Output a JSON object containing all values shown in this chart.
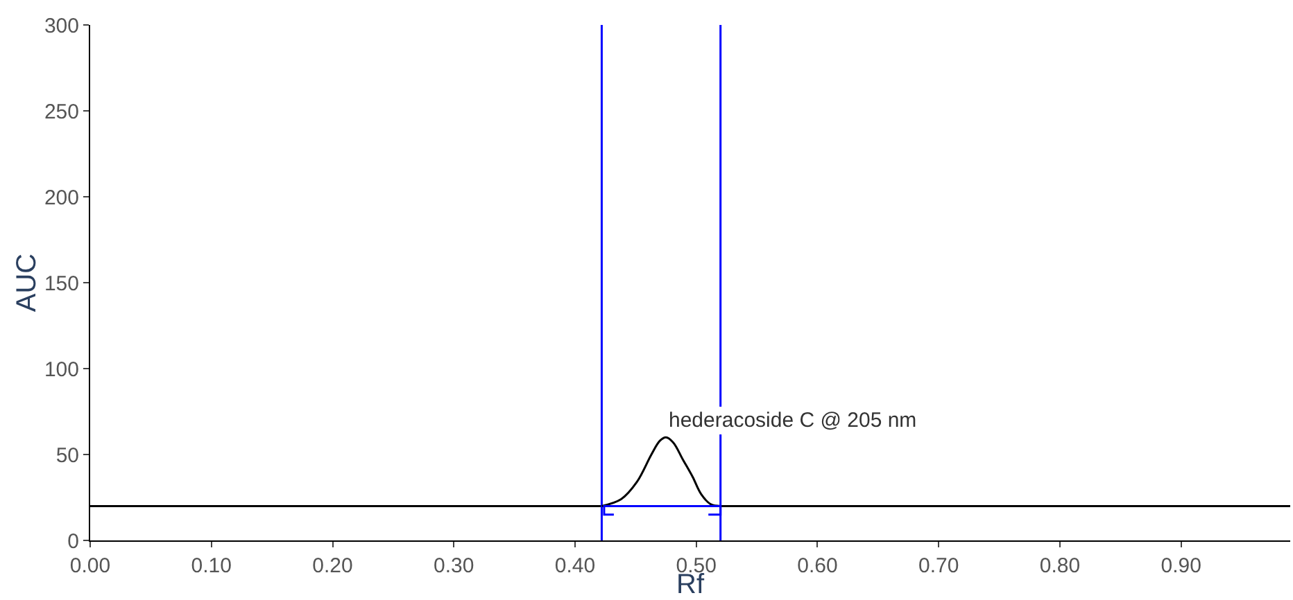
{
  "chart_data": {
    "type": "line",
    "xlabel": "Rf",
    "ylabel": "AUC",
    "xlim": [
      0,
      0.99
    ],
    "xticks": [
      {
        "value": 0,
        "label": "0.00"
      },
      {
        "value": 0.1,
        "label": "0.10"
      },
      {
        "value": 0.2,
        "label": "0.20"
      },
      {
        "value": 0.3,
        "label": "0.30"
      },
      {
        "value": 0.4,
        "label": "0.40"
      },
      {
        "value": 0.5,
        "label": "0.50"
      },
      {
        "value": 0.6,
        "label": "0.60"
      },
      {
        "value": 0.7,
        "label": "0.70"
      },
      {
        "value": 0.8,
        "label": "0.80"
      },
      {
        "value": 0.9,
        "label": "0.90"
      }
    ],
    "ylim": [
      0,
      300
    ],
    "yticks": [
      0,
      50,
      100,
      150,
      200,
      250,
      300
    ],
    "series": [
      {
        "color": "#000000",
        "x": [
          0.422,
          0.438,
          0.451,
          0.463,
          0.47,
          0.475,
          0.481,
          0.489,
          0.497,
          0.504,
          0.512,
          0.52
        ],
        "values": [
          20,
          24,
          34,
          50,
          58,
          60,
          57,
          47,
          37,
          27,
          21,
          20
        ]
      },
      {
        "color": "#0000ff",
        "x": [
          0.432,
          0.424,
          0.424,
          0.52,
          0.52,
          0.51
        ],
        "values": [
          15,
          15,
          20,
          20,
          15,
          15
        ]
      }
    ],
    "ref_lines": [
      {
        "axis": "y",
        "value": 20,
        "color": "#000000"
      },
      {
        "axis": "x",
        "value": 0.422,
        "color": "#0000ff"
      },
      {
        "axis": "x",
        "value": 0.52,
        "color": "#0000ff"
      }
    ],
    "annotations": [
      {
        "text": "hederacoside C @ 205 nm",
        "x": 0.475,
        "y": 60
      }
    ],
    "grid": false,
    "marker": "none",
    "line_style": "solid"
  }
}
